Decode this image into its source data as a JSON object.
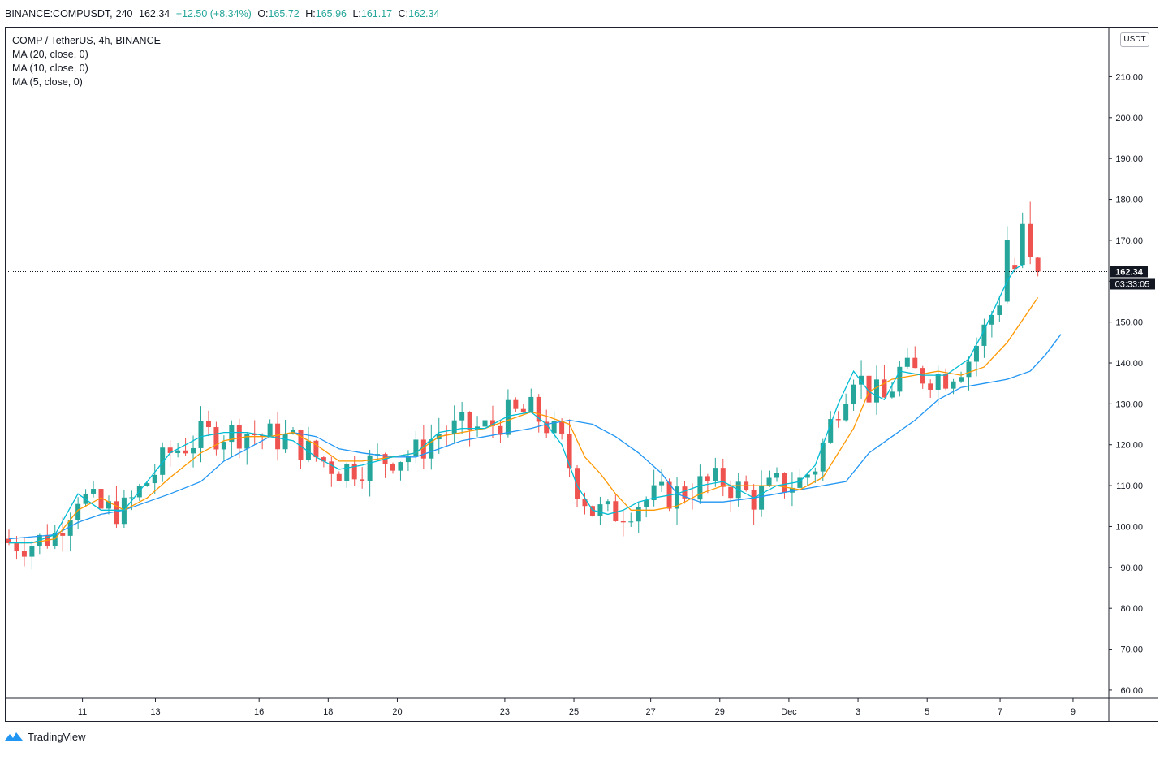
{
  "header": {
    "symbol": "BINANCE:COMPUSDT,",
    "interval": "240",
    "price": "162.34",
    "change": "+12.50 (+8.34%)",
    "o_label": "O:",
    "o_value": "165.72",
    "h_label": "H:",
    "h_value": "165.96",
    "l_label": "L:",
    "l_value": "161.17",
    "c_label": "C:",
    "c_value": "162.34"
  },
  "legend": {
    "title": "COMP / TetherUS, 4h, BINANCE",
    "ma20": "MA (20, close, 0)",
    "ma10": "MA (10, close, 0)",
    "ma5": "MA (5, close, 0)"
  },
  "axis_currency": "USDT",
  "last_price_label": "162.34",
  "countdown_label": "03:33:05",
  "footer": {
    "brand": "TradingView"
  },
  "colors": {
    "up": "#26a69a",
    "down": "#ef5350",
    "ma20": "#2196f3",
    "ma10": "#ff9800",
    "ma5": "#00bcd4",
    "label_bg": "#131722"
  },
  "chart_data": {
    "type": "candlestick",
    "ylim": [
      58,
      222
    ],
    "y_ticks": [
      "60.00",
      "70.00",
      "80.00",
      "90.00",
      "100.00",
      "110.00",
      "120.00",
      "130.00",
      "140.00",
      "150.00",
      "160.00",
      "170.00",
      "180.00",
      "190.00",
      "200.00",
      "210.00"
    ],
    "x_ticks": [
      "11",
      "13",
      "16",
      "18",
      "20",
      "23",
      "25",
      "27",
      "29",
      "Dec",
      "3",
      "5",
      "7",
      "9"
    ],
    "last_price": 162.34,
    "series": [
      {
        "name": "MA (20, close, 0)",
        "color": "#2196f3",
        "values": [
          [
            0,
            97
          ],
          [
            3,
            97.5
          ],
          [
            6,
            98
          ],
          [
            9,
            101
          ],
          [
            12,
            103
          ],
          [
            15,
            104
          ],
          [
            18,
            106
          ],
          [
            21,
            108
          ],
          [
            25,
            111
          ],
          [
            28,
            116
          ],
          [
            31,
            119
          ],
          [
            34,
            122
          ],
          [
            37,
            123
          ],
          [
            40,
            122
          ],
          [
            43,
            119
          ],
          [
            46,
            118
          ],
          [
            50,
            117
          ],
          [
            53,
            117
          ],
          [
            56,
            119
          ],
          [
            59,
            121
          ],
          [
            62,
            122
          ],
          [
            65,
            123
          ],
          [
            68,
            124
          ],
          [
            70,
            125
          ],
          [
            73,
            126
          ],
          [
            76,
            125
          ],
          [
            79,
            122
          ],
          [
            82,
            118
          ],
          [
            85,
            113
          ],
          [
            87,
            108
          ],
          [
            90,
            106
          ],
          [
            93,
            106
          ],
          [
            97,
            107
          ],
          [
            100,
            108
          ],
          [
            103,
            109
          ],
          [
            106,
            110
          ],
          [
            109,
            111
          ],
          [
            112,
            118
          ],
          [
            115,
            122
          ],
          [
            118,
            126
          ],
          [
            121,
            131
          ],
          [
            124,
            134
          ],
          [
            127,
            135
          ],
          [
            130,
            136
          ],
          [
            133,
            138
          ],
          [
            135,
            142
          ],
          [
            137,
            147
          ]
        ]
      },
      {
        "name": "MA (10, close, 0)",
        "color": "#ff9800",
        "values": [
          [
            0,
            96
          ],
          [
            3,
            96
          ],
          [
            6,
            97
          ],
          [
            9,
            104
          ],
          [
            12,
            107
          ],
          [
            15,
            104
          ],
          [
            18,
            107
          ],
          [
            21,
            112
          ],
          [
            25,
            118
          ],
          [
            28,
            121
          ],
          [
            31,
            122
          ],
          [
            34,
            122
          ],
          [
            37,
            123
          ],
          [
            40,
            120
          ],
          [
            43,
            116
          ],
          [
            46,
            116
          ],
          [
            50,
            117
          ],
          [
            53,
            118
          ],
          [
            56,
            122
          ],
          [
            59,
            123
          ],
          [
            62,
            124
          ],
          [
            65,
            126
          ],
          [
            68,
            128
          ],
          [
            70,
            127
          ],
          [
            73,
            125
          ],
          [
            75,
            117
          ],
          [
            77,
            113
          ],
          [
            79,
            108
          ],
          [
            81,
            104
          ],
          [
            84,
            104
          ],
          [
            87,
            105
          ],
          [
            90,
            108
          ],
          [
            93,
            110
          ],
          [
            97,
            110
          ],
          [
            100,
            110
          ],
          [
            103,
            109
          ],
          [
            106,
            112
          ],
          [
            108,
            118
          ],
          [
            110,
            124
          ],
          [
            112,
            133
          ],
          [
            115,
            136
          ],
          [
            118,
            137
          ],
          [
            121,
            138
          ],
          [
            124,
            137
          ],
          [
            127,
            139
          ],
          [
            130,
            145
          ],
          [
            134,
            156
          ]
        ]
      },
      {
        "name": "MA (5, close, 0)",
        "color": "#00bcd4",
        "values": [
          [
            0,
            96
          ],
          [
            3,
            96
          ],
          [
            6,
            98
          ],
          [
            9,
            108
          ],
          [
            12,
            104
          ],
          [
            15,
            104
          ],
          [
            18,
            111
          ],
          [
            21,
            118
          ],
          [
            25,
            122
          ],
          [
            28,
            123
          ],
          [
            31,
            123
          ],
          [
            34,
            122
          ],
          [
            37,
            121
          ],
          [
            40,
            117
          ],
          [
            43,
            114
          ],
          [
            46,
            115
          ],
          [
            50,
            117
          ],
          [
            53,
            118
          ],
          [
            56,
            123
          ],
          [
            59,
            124
          ],
          [
            62,
            124
          ],
          [
            65,
            127
          ],
          [
            68,
            128
          ],
          [
            70,
            125
          ],
          [
            72,
            120
          ],
          [
            74,
            110
          ],
          [
            76,
            104
          ],
          [
            78,
            103
          ],
          [
            80,
            104
          ],
          [
            82,
            106
          ],
          [
            84,
            107
          ],
          [
            87,
            108
          ],
          [
            90,
            110
          ],
          [
            93,
            111
          ],
          [
            97,
            107
          ],
          [
            100,
            110
          ],
          [
            103,
            111
          ],
          [
            105,
            115
          ],
          [
            108,
            130
          ],
          [
            110,
            138
          ],
          [
            112,
            133
          ],
          [
            114,
            131
          ],
          [
            116,
            138
          ],
          [
            119,
            137
          ],
          [
            122,
            137
          ],
          [
            125,
            141
          ],
          [
            127,
            148
          ],
          [
            130,
            160
          ],
          [
            131,
            163
          ],
          [
            132,
            164
          ]
        ]
      }
    ]
  }
}
